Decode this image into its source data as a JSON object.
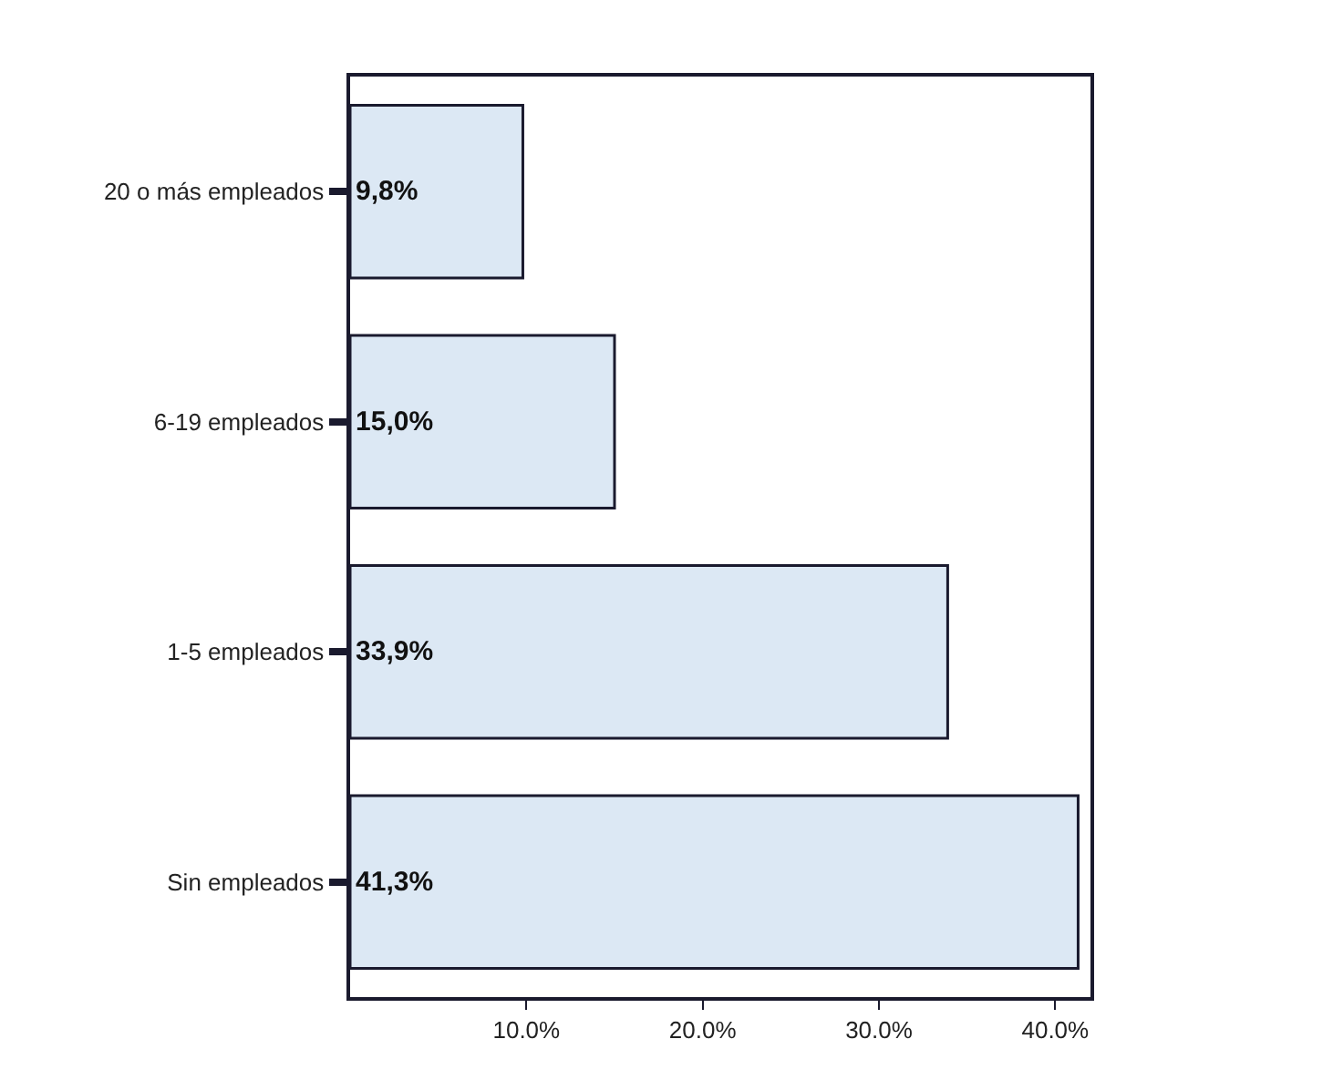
{
  "chart_data": {
    "type": "bar",
    "orientation": "horizontal",
    "categories": [
      "20 o más empleados",
      "6-19 empleados",
      "1-5 empleados",
      "Sin empleados"
    ],
    "values": [
      9.8,
      15.0,
      33.9,
      41.3
    ],
    "value_labels": [
      "9,8%",
      "15,0%",
      "33,9%",
      "41,3%"
    ],
    "color": "#dce8f4",
    "xlim": [
      0,
      42
    ],
    "xticks": [
      {
        "value": 10,
        "label": "10.0%"
      },
      {
        "value": 20,
        "label": "20.0%"
      },
      {
        "value": 30,
        "label": "30.0%"
      },
      {
        "value": 40,
        "label": "40.0%"
      }
    ]
  }
}
